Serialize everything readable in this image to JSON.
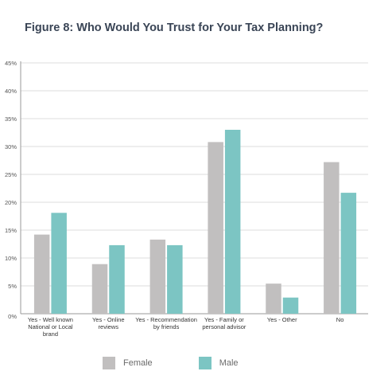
{
  "chart_data": {
    "type": "bar",
    "title": "Figure 8: Who Would You Trust for Your Tax Planning?",
    "categories": [
      [
        "Yes - Well known",
        "National or Local",
        "brand"
      ],
      [
        "Yes - Online",
        "reviews"
      ],
      [
        "Yes - Recommendation",
        "by friends"
      ],
      [
        "Yes - Family or",
        "personal advisor"
      ],
      [
        "Yes - Other"
      ],
      [
        "No"
      ]
    ],
    "series": [
      {
        "name": "Female",
        "color": "#c1bfbf",
        "values": [
          14.2,
          8.9,
          13.3,
          30.8,
          5.4,
          27.2
        ]
      },
      {
        "name": "Male",
        "color": "#7cc5c3",
        "values": [
          18.1,
          12.3,
          12.3,
          33.0,
          2.9,
          21.7
        ]
      }
    ],
    "y_ticks": [
      "0%",
      "5%",
      "10%",
      "15%",
      "20%",
      "25%",
      "30%",
      "35%",
      "40%",
      "45%"
    ],
    "ylim": [
      0,
      45
    ],
    "grid": true,
    "legend_position": "bottom"
  }
}
